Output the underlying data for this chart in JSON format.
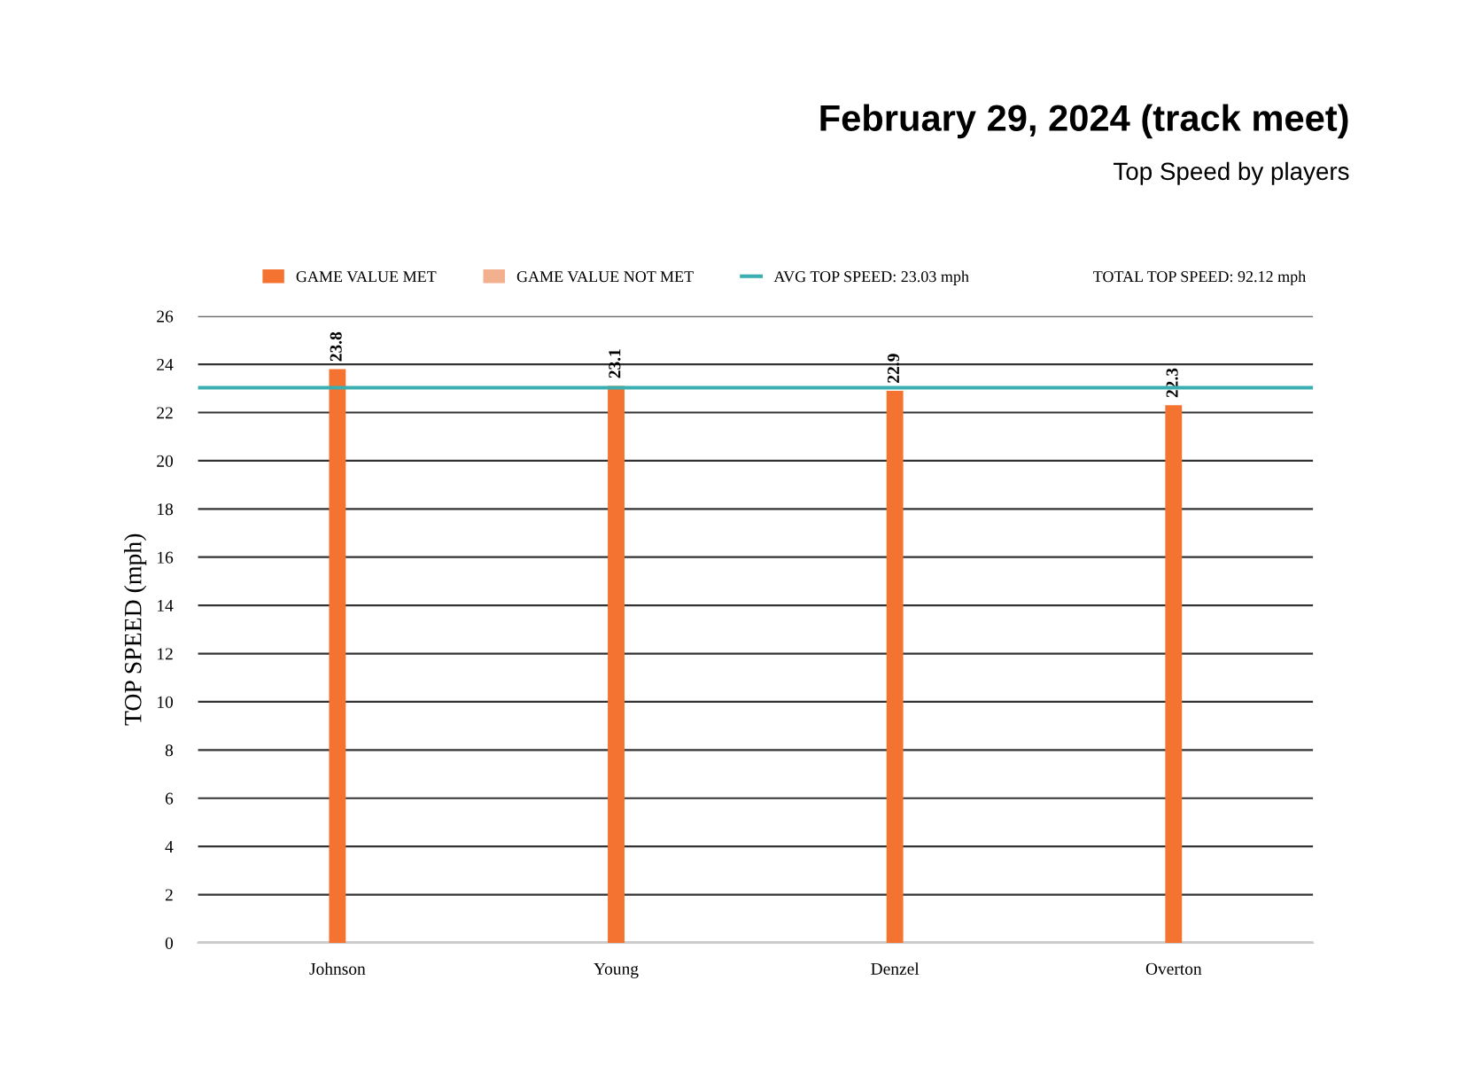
{
  "chart_data": {
    "type": "bar",
    "title": "February 29, 2024 (track meet)",
    "subtitle": "Top Speed by players",
    "ylabel": "TOP SPEED (mph)",
    "categories": [
      "Johnson",
      "Young",
      "Denzel",
      "Overton"
    ],
    "series": [
      {
        "name": "GAME VALUE MET",
        "color": "#f47331",
        "values": [
          23.8,
          23.1,
          22.9,
          22.3
        ]
      },
      {
        "name": "GAME VALUE NOT MET",
        "color": "#f2b08f",
        "values": [
          null,
          null,
          null,
          null
        ]
      }
    ],
    "ref_lines": [
      {
        "axis": "y",
        "value": 23.03,
        "label": "AVG TOP SPEED: 23.03 mph",
        "color": "#3aaeb0",
        "line_style": "solid"
      }
    ],
    "annotations": [
      "TOTAL TOP SPEED: 92.12 mph"
    ],
    "data_labels": true,
    "ylim": [
      0,
      26
    ],
    "yticks": [
      0,
      2,
      4,
      6,
      8,
      10,
      12,
      14,
      16,
      18,
      20,
      22,
      24,
      26
    ],
    "grid": "y",
    "legend": "top"
  }
}
